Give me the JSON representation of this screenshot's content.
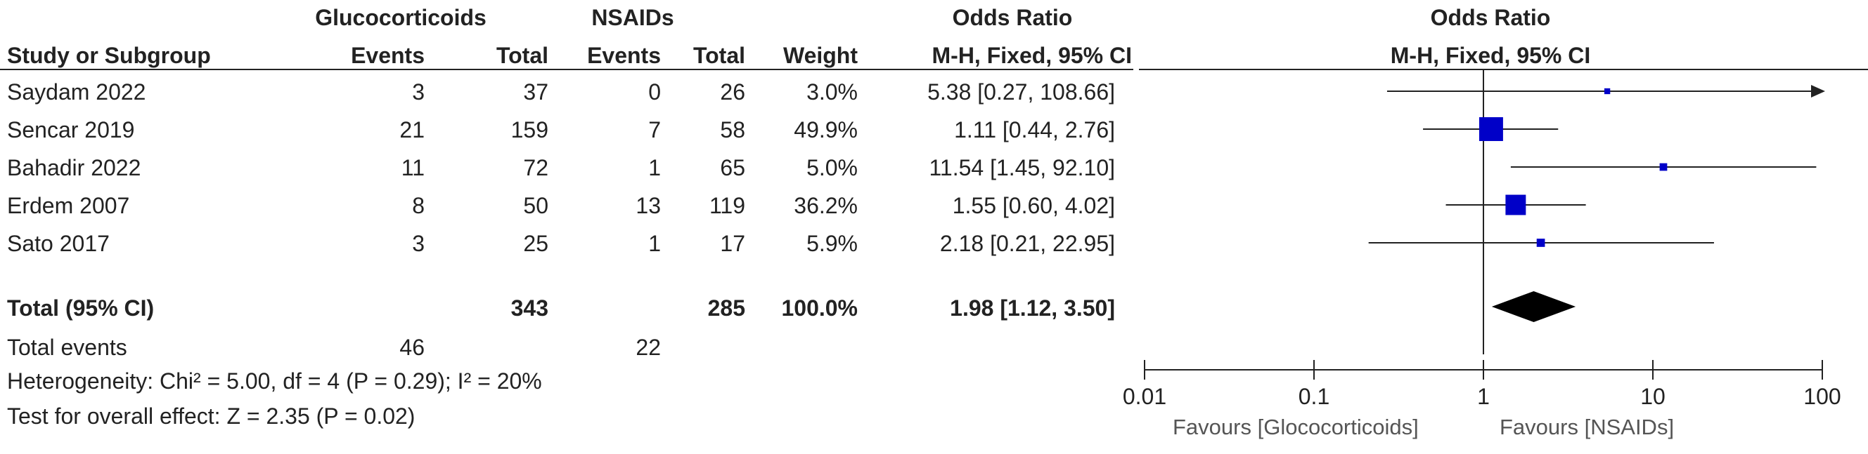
{
  "header": {
    "group1": "Glucocorticoids",
    "group2": "NSAIDs",
    "or_col_title": "Odds Ratio",
    "or_col_sub": "M-H, Fixed, 95% CI",
    "study": "Study or Subgroup",
    "events1": "Events",
    "total1": "Total",
    "events2": "Events",
    "total2": "Total",
    "weight": "Weight",
    "plot_title": "Odds Ratio",
    "plot_sub": "M-H, Fixed, 95% CI"
  },
  "studies": [
    {
      "name": "Saydam 2022",
      "e1": "3",
      "t1": "37",
      "e2": "0",
      "t2": "26",
      "weight": "3.0%",
      "ci": "5.38 [0.27, 108.66]"
    },
    {
      "name": "Sencar 2019",
      "e1": "21",
      "t1": "159",
      "e2": "7",
      "t2": "58",
      "weight": "49.9%",
      "ci": "1.11 [0.44, 2.76]"
    },
    {
      "name": "Bahadir 2022",
      "e1": "11",
      "t1": "72",
      "e2": "1",
      "t2": "65",
      "weight": "5.0%",
      "ci": "11.54 [1.45, 92.10]"
    },
    {
      "name": "Erdem 2007",
      "e1": "8",
      "t1": "50",
      "e2": "13",
      "t2": "119",
      "weight": "36.2%",
      "ci": "1.55 [0.60, 4.02]"
    },
    {
      "name": "Sato 2017",
      "e1": "3",
      "t1": "25",
      "e2": "1",
      "t2": "17",
      "weight": "5.9%",
      "ci": "2.18 [0.21, 22.95]"
    }
  ],
  "total": {
    "label": "Total (95% CI)",
    "t1": "343",
    "t2": "285",
    "weight": "100.0%",
    "ci": "1.98 [1.12, 3.50]"
  },
  "total_events": {
    "label": "Total events",
    "e1": "46",
    "e2": "22"
  },
  "heterogeneity": "Heterogeneity: Chi² = 5.00, df = 4 (P = 0.29); I² = 20%",
  "overall_effect": "Test for overall effect: Z = 2.35 (P = 0.02)",
  "axis": {
    "ticks": [
      "0.01",
      "0.1",
      "1",
      "10",
      "100"
    ],
    "favours_left": "Favours [Glococorticoids]",
    "favours_right": "Favours [NSAIDs]"
  },
  "colors": {
    "marker": "#0000c8",
    "diamond": "#000000",
    "line": "#222222"
  },
  "chart_data": {
    "type": "forest",
    "scale": "log",
    "xlim": [
      0.01,
      100
    ],
    "reference_line": 1,
    "studies": [
      {
        "name": "Saydam 2022",
        "or": 5.38,
        "lo": 0.27,
        "hi": 108.66,
        "weight": 3.0
      },
      {
        "name": "Sencar 2019",
        "or": 1.11,
        "lo": 0.44,
        "hi": 2.76,
        "weight": 49.9
      },
      {
        "name": "Bahadir 2022",
        "or": 11.54,
        "lo": 1.45,
        "hi": 92.1,
        "weight": 5.0
      },
      {
        "name": "Erdem 2007",
        "or": 1.55,
        "lo": 0.6,
        "hi": 4.02,
        "weight": 36.2
      },
      {
        "name": "Sato 2017",
        "or": 2.18,
        "lo": 0.21,
        "hi": 22.95,
        "weight": 5.9
      }
    ],
    "pooled": {
      "or": 1.98,
      "lo": 1.12,
      "hi": 3.5
    }
  }
}
